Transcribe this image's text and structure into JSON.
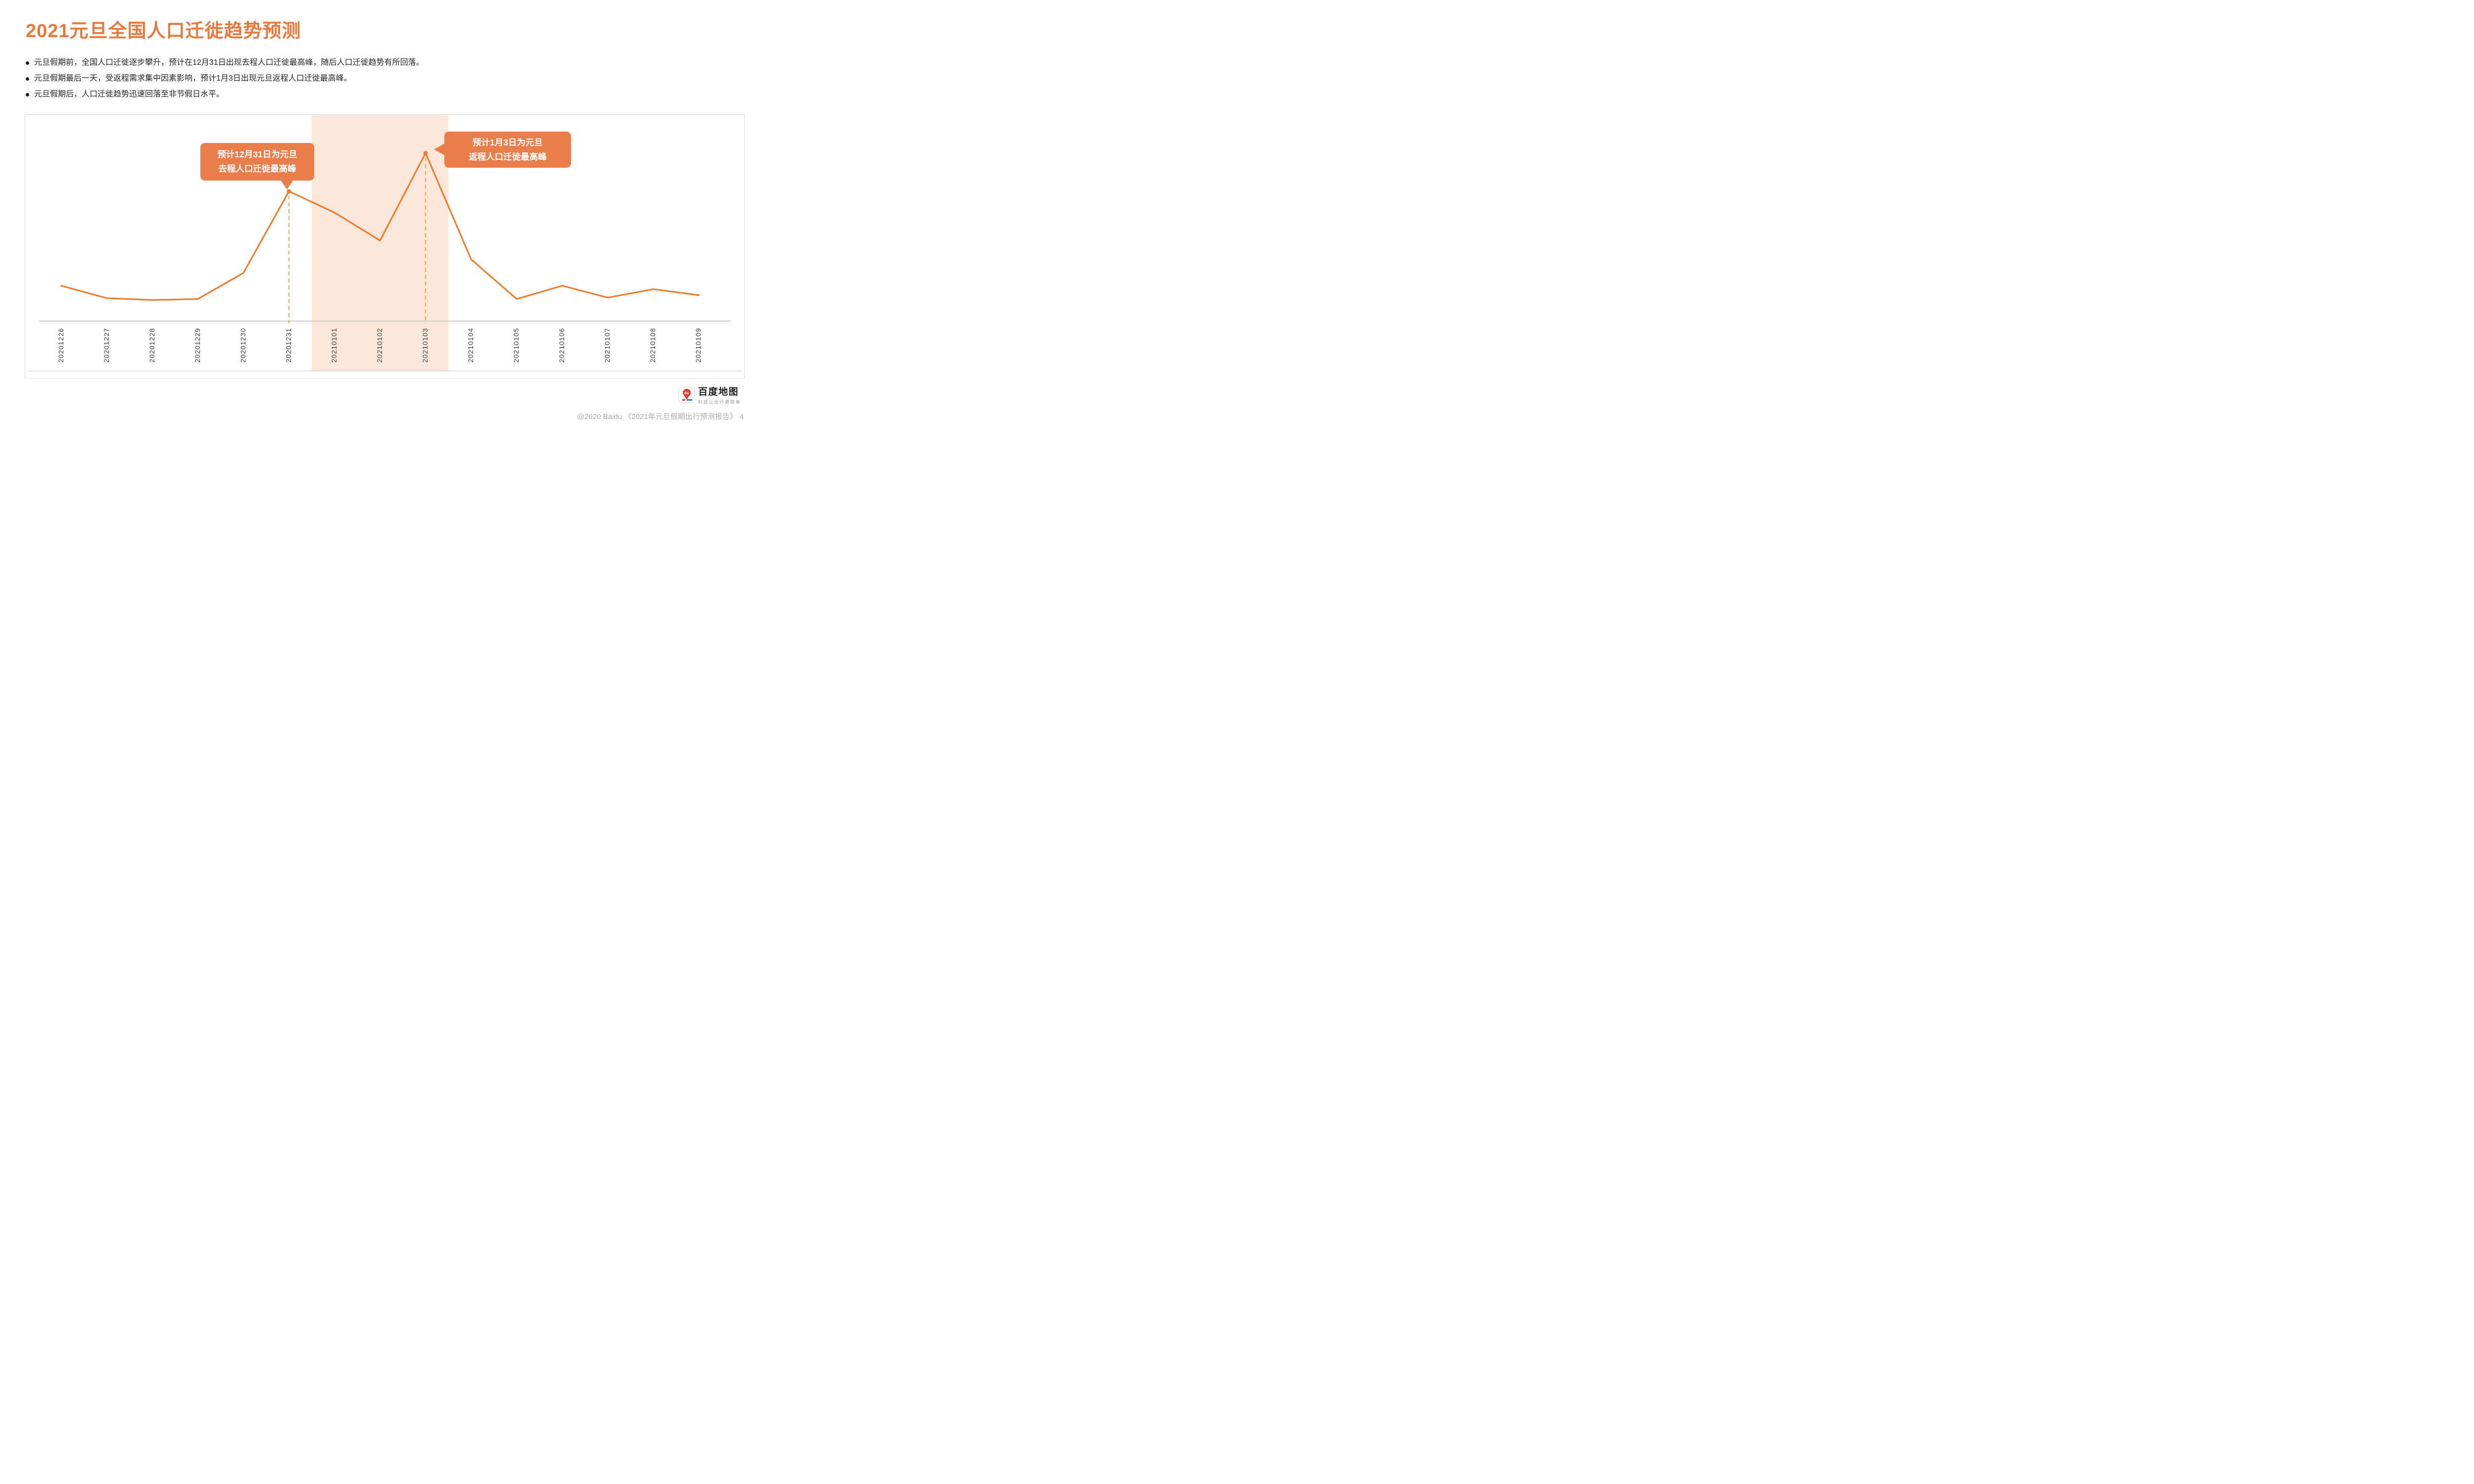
{
  "page": {
    "title": "2021元旦全国人口迁徙趋势预测",
    "bullets": [
      "元旦假期前，全国人口迁徙逐步攀升，预计在12月31日出现去程人口迁徙最高峰，随后人口迁徙趋势有所回落。",
      "元旦假期最后一天，受返程需求集中因素影响，预计1月3日出现元旦返程人口迁徙最高峰。",
      "元旦假期后，人口迁徙趋势迅速回落至非节假日水平。"
    ],
    "footer": {
      "credit": "@2020 Baidu 《2021年元旦假期出行预测报告》",
      "page_number": "4",
      "logo": {
        "brand": "百度地图",
        "slogan": "科技让出行更简单",
        "pin_text": "du"
      }
    }
  },
  "colors": {
    "title_orange": "#E9793B",
    "line_orange": "#EC7D2E",
    "callout_orange": "#E97E4B",
    "dashed_orange": "#EFA052",
    "holiday_band": "#FBE7D9",
    "card_border": "#D9D9D9",
    "axis_gray": "#CFCFCF",
    "label_gray": "#3A3A3A",
    "footer_gray": "#ACACAC",
    "logo_red": "#E33A30"
  },
  "chart_data": {
    "type": "line",
    "title": "",
    "xlabel": "",
    "ylabel": "",
    "grid": false,
    "legend": "none",
    "series_color": "#EC7D2E",
    "x": [
      "20201226",
      "20201227",
      "20201228",
      "20201229",
      "20201230",
      "20201231",
      "20210101",
      "20210102",
      "20210103",
      "20210104",
      "20210105",
      "20210106",
      "20210107",
      "20210108",
      "20210109"
    ],
    "values": [
      20.5,
      13.3,
      12.2,
      12.8,
      27.9,
      75.3,
      63.0,
      46.7,
      97.5,
      35.8,
      12.8,
      20.5,
      13.6,
      18.5,
      15.0
    ],
    "ylim": [
      0,
      110
    ],
    "holiday_band": {
      "from": "20210101",
      "to": "20210103",
      "color": "#FBE7D9"
    },
    "annotations": [
      {
        "date": "20201231",
        "value": 75.3,
        "lines": [
          "预计12月31日为元旦",
          "去程人口迁徙最高峰"
        ],
        "pointer": "down"
      },
      {
        "date": "20210103",
        "value": 97.5,
        "lines": [
          "预计1月3日为元旦",
          "返程人口迁徙最高峰"
        ],
        "pointer": "left"
      }
    ]
  }
}
